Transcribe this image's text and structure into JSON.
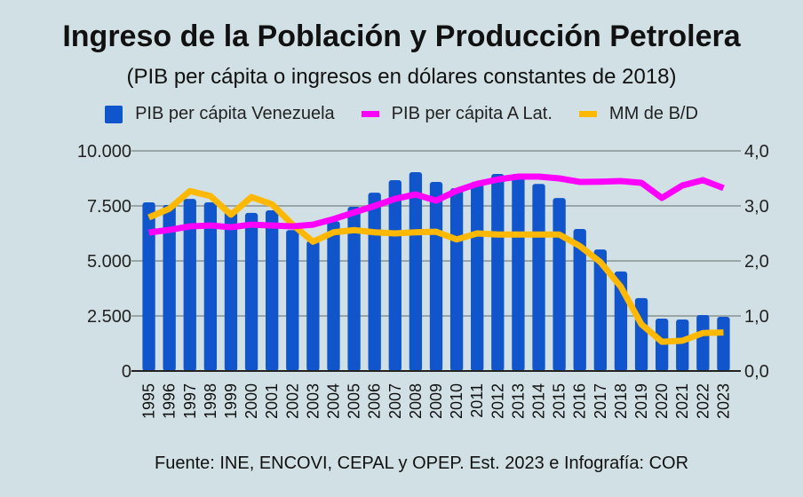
{
  "chart_data": {
    "type": "bar",
    "title": "Ingreso de la Población y Producción Petrolera",
    "subtitle": "(PIB per cápita o ingresos en dólares constantes de 2018)",
    "footer": "Fuente: INE, ENCOVI, CEPAL y OPEP.  Est. 2023 e Infografía: COR",
    "legend_position": "top",
    "grid": true,
    "categories": [
      "1995",
      "1996",
      "1997",
      "1998",
      "1999",
      "2000",
      "2001",
      "2002",
      "2003",
      "2004",
      "2005",
      "2006",
      "2007",
      "2008",
      "2009",
      "2010",
      "2011",
      "2012",
      "2013",
      "2014",
      "2015",
      "2016",
      "2017",
      "2018",
      "2019",
      "2020",
      "2021",
      "2022",
      "2023"
    ],
    "y_left": {
      "ylim": [
        0,
        10000
      ],
      "ticks": [
        "0",
        "2.500",
        "5.000",
        "7.500",
        "10.000"
      ],
      "tick_values": [
        0,
        2500,
        5000,
        7500,
        10000
      ]
    },
    "y_right": {
      "ylim": [
        0,
        4
      ],
      "ticks": [
        "0,0",
        "1,0",
        "2,0",
        "3,0",
        "4,0"
      ],
      "tick_values": [
        0,
        1,
        2,
        3,
        4
      ]
    },
    "series": [
      {
        "name": "PIB per cápita Venezuela",
        "type": "bar",
        "axis": "left",
        "color": "#1155cc",
        "values": [
          7660,
          7540,
          7820,
          7660,
          7260,
          7180,
          7300,
          6400,
          5900,
          6800,
          7460,
          8100,
          8670,
          9030,
          8590,
          8300,
          8600,
          8950,
          8950,
          8500,
          7860,
          6450,
          5520,
          4520,
          3310,
          2380,
          2340,
          2540,
          2460
        ]
      },
      {
        "name": "PIB per cápita A Lat.",
        "type": "line",
        "axis": "left",
        "color": "#ff00ff",
        "values": [
          6290,
          6410,
          6570,
          6610,
          6530,
          6650,
          6610,
          6570,
          6650,
          6900,
          7200,
          7500,
          7820,
          8020,
          7740,
          8190,
          8500,
          8700,
          8830,
          8830,
          8750,
          8590,
          8600,
          8630,
          8550,
          7860,
          8430,
          8670,
          8310
        ]
      },
      {
        "name": "MM de B/D",
        "type": "line",
        "axis": "right",
        "color": "#ffb800",
        "values": [
          2.79,
          2.95,
          3.27,
          3.18,
          2.84,
          3.16,
          3.03,
          2.66,
          2.35,
          2.52,
          2.56,
          2.52,
          2.5,
          2.52,
          2.53,
          2.39,
          2.5,
          2.48,
          2.48,
          2.48,
          2.48,
          2.27,
          1.98,
          1.53,
          0.85,
          0.53,
          0.55,
          0.69,
          0.7
        ]
      }
    ]
  }
}
